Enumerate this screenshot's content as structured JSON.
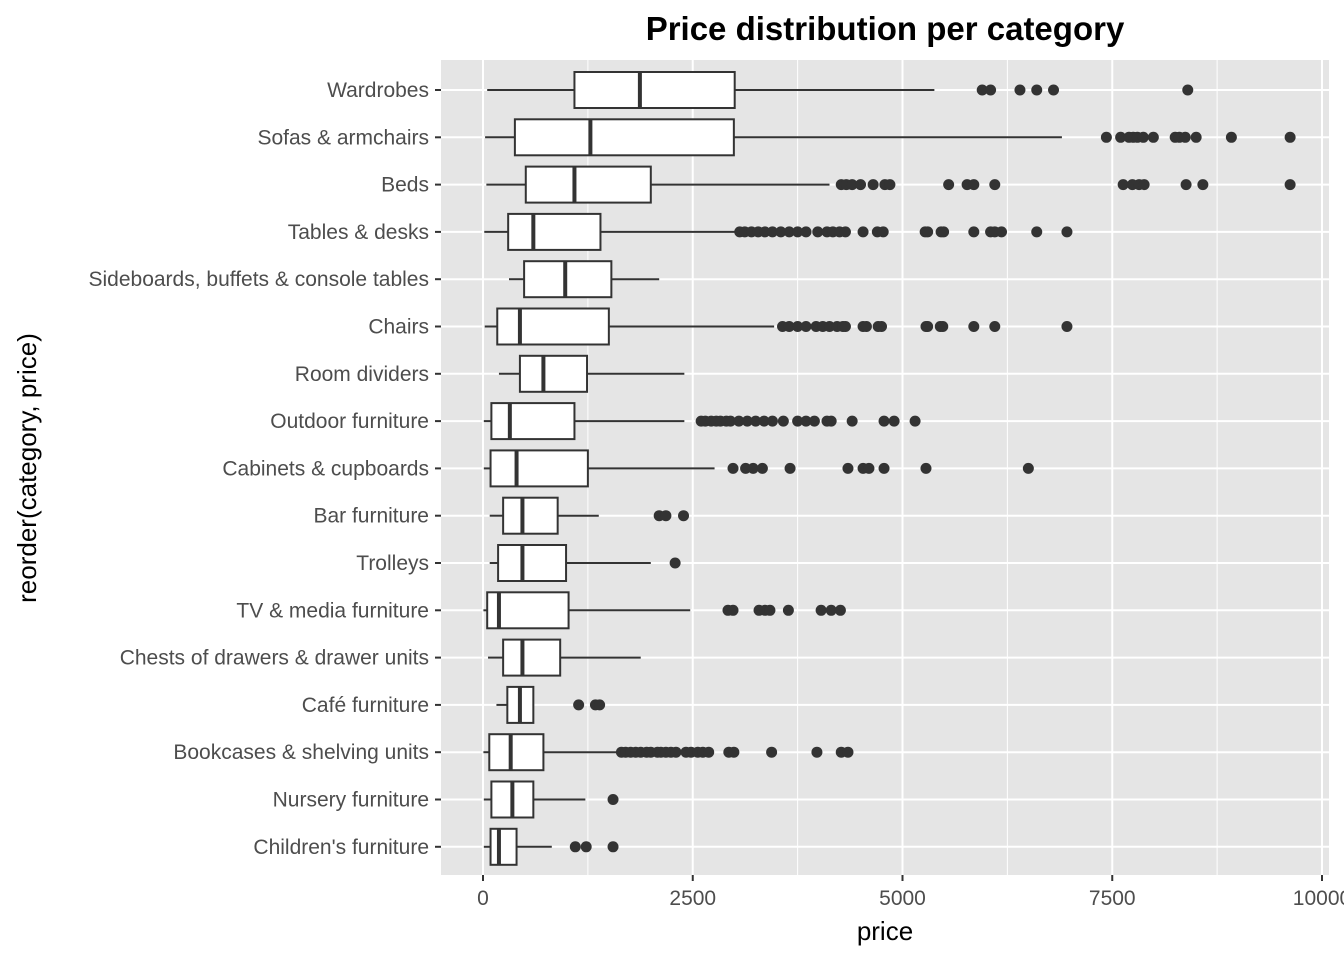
{
  "chart_data": {
    "type": "boxplot",
    "title": "Price distribution per category",
    "xlabel": "price",
    "ylabel": "reorder(category, price)",
    "xlim": [
      0,
      10000
    ],
    "x_ticks": [
      0,
      2500,
      5000,
      7500,
      10000
    ],
    "x_tick_labels": [
      "0",
      "2500",
      "5000",
      "7500",
      "10000"
    ],
    "grid": true,
    "colors": {
      "panel_background": "#e5e5e5",
      "grid_line": "#ffffff",
      "box_fill": "#ffffff",
      "box_stroke": "#333333",
      "outlier": "#333333"
    },
    "categories": [
      {
        "name": "Wardrobes",
        "whisker_low": 50,
        "q1": 1090,
        "median": 1870,
        "q3": 3000,
        "whisker_high": 5380,
        "outliers": [
          5950,
          6050,
          6400,
          6600,
          6800,
          8400
        ]
      },
      {
        "name": "Sofas & armchairs",
        "whisker_low": 25,
        "q1": 380,
        "median": 1280,
        "q3": 2990,
        "whisker_high": 6900,
        "outliers": [
          7430,
          7600,
          7700,
          7750,
          7800,
          7870,
          7990,
          8250,
          8300,
          8370,
          8500,
          8920,
          9620
        ]
      },
      {
        "name": "Beds",
        "whisker_low": 40,
        "q1": 510,
        "median": 1090,
        "q3": 2000,
        "whisker_high": 4130,
        "outliers": [
          4270,
          4330,
          4400,
          4500,
          4650,
          4790,
          4850,
          5550,
          5770,
          5850,
          6100,
          7630,
          7740,
          7820,
          7880,
          8380,
          8580,
          9620
        ]
      },
      {
        "name": "Tables & desks",
        "whisker_low": 15,
        "q1": 300,
        "median": 600,
        "q3": 1400,
        "whisker_high": 3000,
        "outliers": [
          3060,
          3120,
          3200,
          3280,
          3360,
          3450,
          3550,
          3650,
          3750,
          3850,
          3990,
          4100,
          4170,
          4250,
          4320,
          4530,
          4700,
          4770,
          5270,
          5300,
          5460,
          5490,
          5850,
          6050,
          6100,
          6180,
          6600,
          6960
        ]
      },
      {
        "name": "Sideboards, buffets & console tables",
        "whisker_low": 310,
        "q1": 490,
        "median": 980,
        "q3": 1530,
        "whisker_high": 2100,
        "outliers": []
      },
      {
        "name": "Chairs",
        "whisker_low": 20,
        "q1": 170,
        "median": 440,
        "q3": 1500,
        "whisker_high": 3470,
        "outliers": [
          3570,
          3650,
          3750,
          3850,
          3970,
          4050,
          4130,
          4220,
          4290,
          4320,
          4530,
          4570,
          4710,
          4750,
          5280,
          5300,
          5450,
          5480,
          5850,
          6100,
          6960
        ]
      },
      {
        "name": "Room dividers",
        "whisker_low": 190,
        "q1": 440,
        "median": 720,
        "q3": 1240,
        "whisker_high": 2400,
        "outliers": []
      },
      {
        "name": "Outdoor furniture",
        "whisker_low": 10,
        "q1": 100,
        "median": 320,
        "q3": 1090,
        "whisker_high": 2400,
        "outliers": [
          2600,
          2650,
          2720,
          2780,
          2830,
          2900,
          2950,
          3050,
          3150,
          3250,
          3350,
          3450,
          3580,
          3750,
          3850,
          3950,
          4100,
          4150,
          4400,
          4780,
          4900,
          5150
        ]
      },
      {
        "name": "Cabinets & cupboards",
        "whisker_low": 10,
        "q1": 90,
        "median": 400,
        "q3": 1250,
        "whisker_high": 2760,
        "outliers": [
          2980,
          3130,
          3220,
          3330,
          3660,
          4350,
          4530,
          4600,
          4780,
          5280,
          6500
        ]
      },
      {
        "name": "Bar furniture",
        "whisker_low": 80,
        "q1": 240,
        "median": 470,
        "q3": 890,
        "whisker_high": 1380,
        "outliers": [
          2100,
          2180,
          2390
        ]
      },
      {
        "name": "Trolleys",
        "whisker_low": 80,
        "q1": 180,
        "median": 470,
        "q3": 990,
        "whisker_high": 2000,
        "outliers": [
          2290
        ]
      },
      {
        "name": "TV & media furniture",
        "whisker_low": 5,
        "q1": 50,
        "median": 190,
        "q3": 1020,
        "whisker_high": 2470,
        "outliers": [
          2920,
          2980,
          3290,
          3360,
          3420,
          3640,
          4030,
          4150,
          4260
        ]
      },
      {
        "name": "Chests of drawers & drawer units",
        "whisker_low": 60,
        "q1": 240,
        "median": 470,
        "q3": 920,
        "whisker_high": 1880,
        "outliers": []
      },
      {
        "name": "Café furniture",
        "whisker_low": 160,
        "q1": 290,
        "median": 440,
        "q3": 600,
        "whisker_high": 600,
        "outliers": [
          1140,
          1340,
          1390
        ]
      },
      {
        "name": "Bookcases & shelving units",
        "whisker_low": 5,
        "q1": 75,
        "median": 330,
        "q3": 720,
        "whisker_high": 1600,
        "outliers": [
          1650,
          1700,
          1760,
          1820,
          1880,
          1950,
          2000,
          2080,
          2120,
          2180,
          2240,
          2300,
          2420,
          2480,
          2560,
          2620,
          2690,
          2930,
          2990,
          3440,
          3980,
          4270,
          4350
        ]
      },
      {
        "name": "Nursery furniture",
        "whisker_low": 10,
        "q1": 100,
        "median": 350,
        "q3": 600,
        "whisker_high": 1220,
        "outliers": [
          1550
        ]
      },
      {
        "name": "Children's furniture",
        "whisker_low": 10,
        "q1": 90,
        "median": 190,
        "q3": 400,
        "whisker_high": 820,
        "outliers": [
          1100,
          1230,
          1550
        ]
      }
    ]
  }
}
